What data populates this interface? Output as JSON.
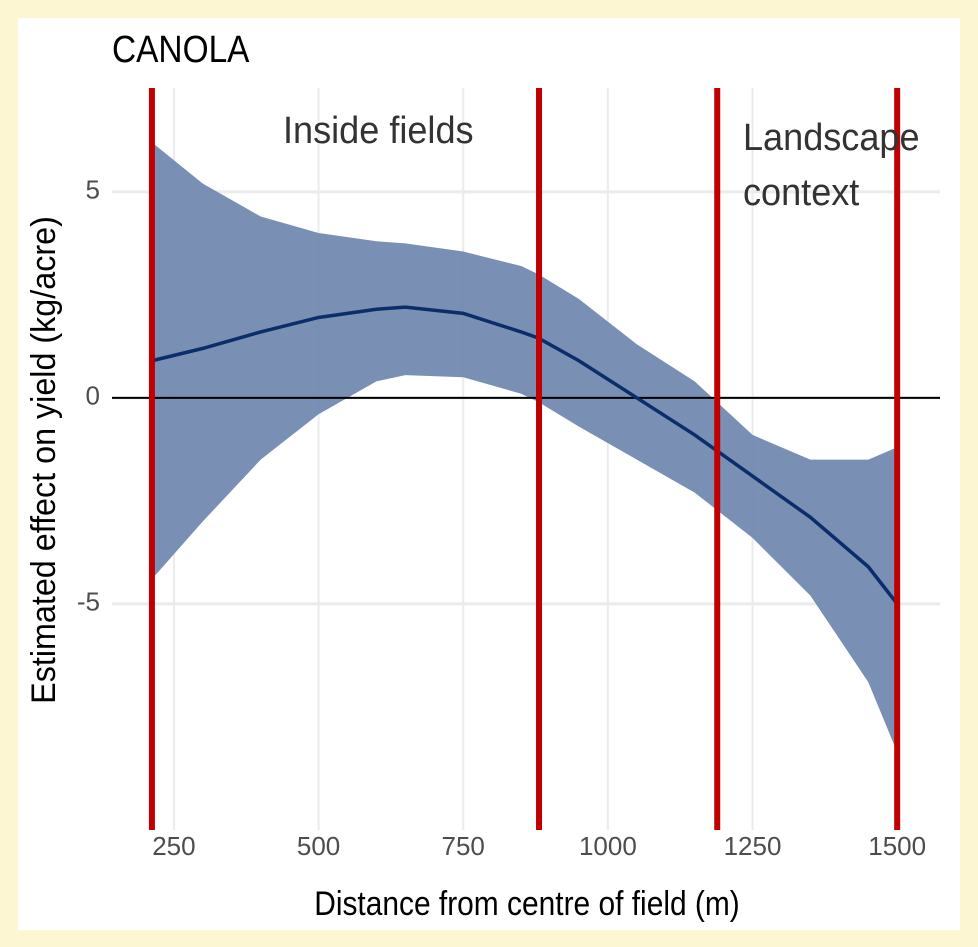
{
  "chart_data": {
    "type": "line",
    "title": "CANOLA",
    "x_label": "Distance from centre of field (m)",
    "y_label": "Estimated effect on yield (kg/acre)",
    "annotations": [
      "Inside fields",
      "Landscape",
      "context"
    ],
    "x": [
      212,
      300,
      400,
      500,
      600,
      650,
      750,
      850,
      880,
      950,
      1050,
      1150,
      1250,
      1350,
      1450,
      1500
    ],
    "series": [
      {
        "color": "#0c2d6b",
        "values": [
          0.9,
          1.2,
          1.6,
          1.95,
          2.15,
          2.2,
          2.05,
          1.6,
          1.45,
          0.9,
          0.0,
          -0.9,
          -1.9,
          -2.9,
          -4.1,
          -5.0
        ]
      }
    ],
    "ribbon": {
      "color": "#7289b0",
      "upper": [
        6.2,
        5.2,
        4.4,
        4.0,
        3.8,
        3.75,
        3.55,
        3.2,
        3.0,
        2.4,
        1.3,
        0.4,
        -0.9,
        -1.5,
        -1.5,
        -1.2
      ],
      "lower": [
        -4.4,
        -3.0,
        -1.5,
        -0.4,
        0.4,
        0.55,
        0.5,
        0.1,
        -0.1,
        -0.7,
        -1.5,
        -2.3,
        -3.4,
        -4.8,
        -6.9,
        -8.6
      ]
    },
    "vlines": {
      "color": "#c00000",
      "values": [
        212,
        881,
        1189,
        1500
      ]
    },
    "hline": 0,
    "xlim": [
      143,
      1574
    ],
    "ylim": [
      -10.49,
      7.52
    ],
    "xticks": [
      250,
      500,
      750,
      1000,
      1250,
      1500
    ],
    "yticks": [
      -5,
      0,
      5
    ],
    "grid": true
  }
}
